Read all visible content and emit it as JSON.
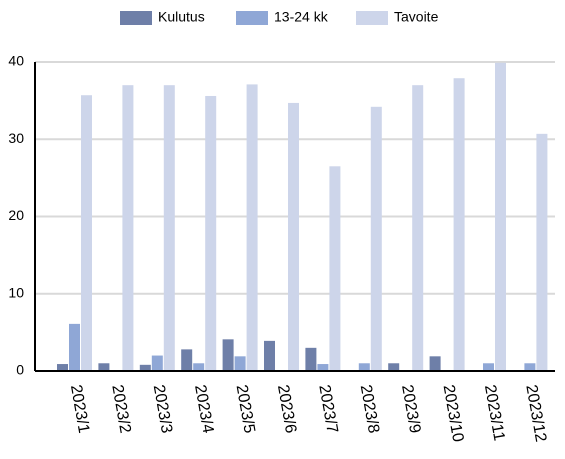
{
  "chart_data": {
    "type": "bar",
    "categories": [
      "2023/1",
      "2023/2",
      "2023/3",
      "2023/4",
      "2023/5",
      "2023/6",
      "2023/7",
      "2023/8",
      "2023/9",
      "2023/10",
      "2023/11",
      "2023/12"
    ],
    "series": [
      {
        "name": "Kulutus",
        "color": "#6e7fa8",
        "values": [
          0.9,
          1.0,
          0.8,
          2.8,
          4.1,
          3.9,
          3.0,
          0,
          1.0,
          1.9,
          0,
          0
        ]
      },
      {
        "name": "13-24 kk",
        "color": "#8fa7d6",
        "values": [
          6.1,
          0,
          2.0,
          1.0,
          1.9,
          0,
          0.9,
          1.0,
          0,
          0,
          1.0,
          1.0
        ]
      },
      {
        "name": "Tavoite",
        "color": "#cdd5ea",
        "values": [
          35.7,
          37.0,
          37.0,
          35.6,
          37.1,
          34.7,
          26.5,
          34.2,
          37.0,
          37.9,
          39.9,
          30.7
        ]
      }
    ],
    "ylim": [
      0,
      40
    ],
    "yticks": [
      0,
      10,
      20,
      30,
      40
    ],
    "grid": true
  }
}
